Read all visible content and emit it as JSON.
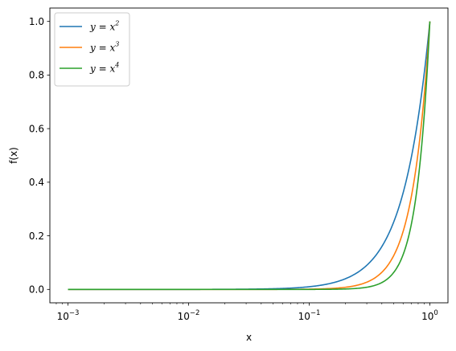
{
  "chart_data": {
    "type": "line",
    "xlabel": "x",
    "ylabel": "f(x)",
    "x_scale": "log",
    "x_range": [
      0.001,
      1.0
    ],
    "xlim": [
      0.0007079,
      1.4125
    ],
    "ylim": [
      -0.05,
      1.05
    ],
    "xticks": [
      {
        "value": 0.001,
        "base": "10",
        "exp": "−3"
      },
      {
        "value": 0.01,
        "base": "10",
        "exp": "−2"
      },
      {
        "value": 0.1,
        "base": "10",
        "exp": "−1"
      },
      {
        "value": 1,
        "base": "10",
        "exp": "0"
      }
    ],
    "yticks": [
      {
        "value": 0.0,
        "label": "0.0"
      },
      {
        "value": 0.2,
        "label": "0.2"
      },
      {
        "value": 0.4,
        "label": "0.4"
      },
      {
        "value": 0.6,
        "label": "0.6"
      },
      {
        "value": 0.8,
        "label": "0.8"
      },
      {
        "value": 1.0,
        "label": "1.0"
      }
    ],
    "legend_position": "top-left",
    "series": [
      {
        "name": "y = x2",
        "legend_base": "y = x",
        "legend_exp": "2",
        "exponent": 2,
        "color": "#1f77b4"
      },
      {
        "name": "y = x3",
        "legend_base": "y = x",
        "legend_exp": "3",
        "exponent": 3,
        "color": "#ff7f0e"
      },
      {
        "name": "y = x4",
        "legend_base": "y = x",
        "legend_exp": "4",
        "exponent": 4,
        "color": "#2ca02c"
      }
    ]
  }
}
